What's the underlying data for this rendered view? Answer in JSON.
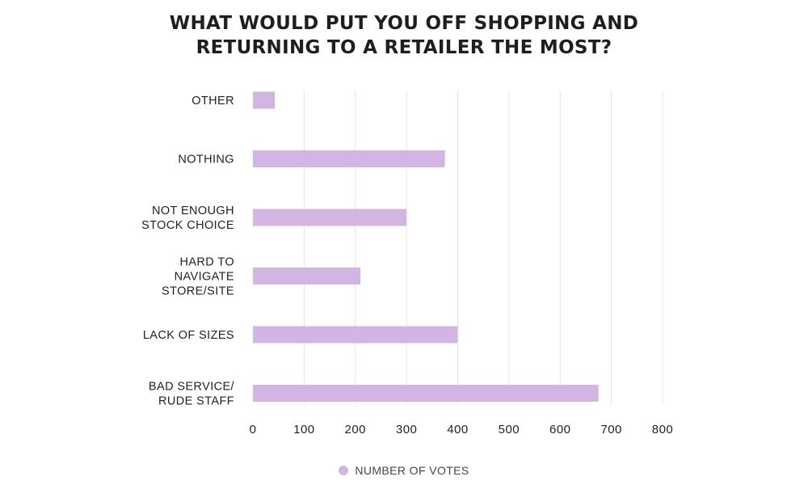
{
  "chart_data": {
    "type": "bar",
    "orientation": "horizontal",
    "title_lines": [
      "WHAT WOULD PUT YOU OFF SHOPPING AND",
      "RETURNING TO A RETAILER THE MOST?"
    ],
    "categories": [
      [
        "OTHER"
      ],
      [
        "NOTHING"
      ],
      [
        "NOT ENOUGH",
        "STOCK CHOICE"
      ],
      [
        "HARD TO",
        "NAVIGATE",
        "STORE/SITE"
      ],
      [
        "LACK OF SIZES"
      ],
      [
        "BAD SERVICE/",
        "RUDE STAFF"
      ]
    ],
    "series": [
      {
        "name": "NUMBER OF VOTES",
        "values": [
          43,
          375,
          300,
          210,
          400,
          675
        ]
      }
    ],
    "xlim": [
      0,
      800
    ],
    "xticks": [
      "0",
      "100",
      "200",
      "300",
      "400",
      "500",
      "600",
      "700",
      "800"
    ],
    "grid": true,
    "legend_position": "bottom-center",
    "colors": {
      "bar": "#d3b5e3",
      "grid": "#e3e3e3",
      "text": "#222222"
    }
  }
}
